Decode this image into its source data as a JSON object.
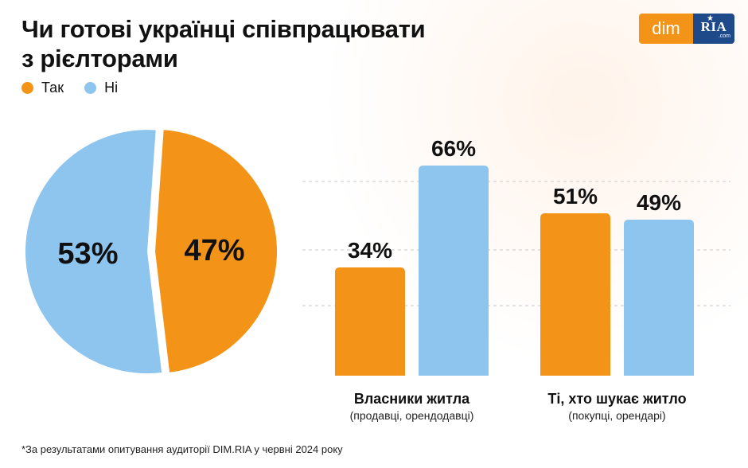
{
  "header": {
    "title_line1": "Чи готові українці співпрацювати",
    "title_line2": "з рієлторами"
  },
  "legend": [
    {
      "label": "Так",
      "color": "#F39419"
    },
    {
      "label": "Ні",
      "color": "#8EC5EE"
    }
  ],
  "logo": {
    "dim": "dim",
    "ria": "RIA",
    "ria_suffix": ".com",
    "dim_color": "#F39419",
    "ria_color": "#1E4A8A"
  },
  "chart_data": [
    {
      "type": "pie",
      "slices": [
        {
          "label": "Так",
          "value": 47,
          "display": "47%",
          "color": "#F39419"
        },
        {
          "label": "Ні",
          "value": 53,
          "display": "53%",
          "color": "#8EC5EE"
        }
      ]
    },
    {
      "type": "bar",
      "categories": [
        {
          "label": "Власники житла",
          "sublabel": "(продавці, орендодавці)"
        },
        {
          "label": "Ті, хто шукає житло",
          "sublabel": "(покупці, орендарі)"
        }
      ],
      "series": [
        {
          "name": "Так",
          "color": "#F39419",
          "values": [
            34,
            51
          ],
          "labels": [
            "34%",
            "51%"
          ]
        },
        {
          "name": "Ні",
          "color": "#8EC5EE",
          "values": [
            66,
            49
          ],
          "labels": [
            "66%",
            "49%"
          ]
        }
      ],
      "ylim": [
        0,
        70
      ],
      "grid": "dashed"
    }
  ],
  "footnote": "*За результатами опитування аудиторії DIM.RIA у червні 2024 року"
}
